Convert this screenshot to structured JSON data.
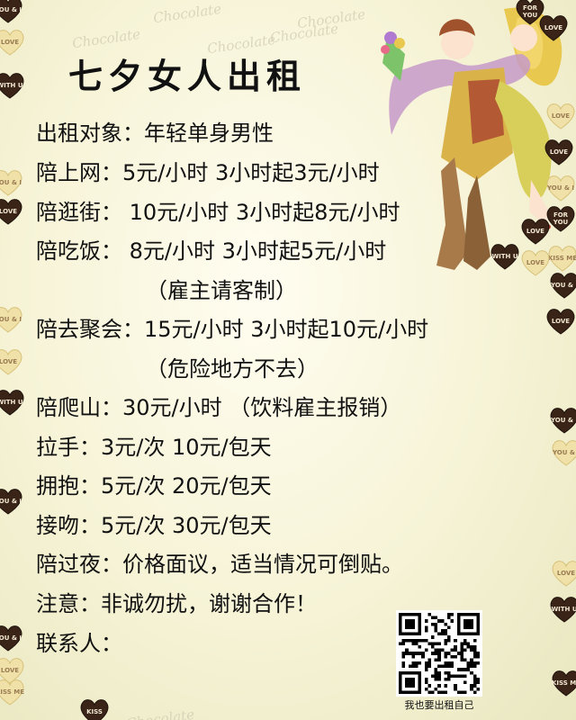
{
  "title": "七夕女人出租",
  "lines": [
    "出租对象：年轻单身男性",
    "陪上网：5元/小时  3小时起3元/小时",
    "陪逛街：  10元/小时  3小时起8元/小时",
    "陪吃饭：  8元/小时  3小时起5元/小时",
    "（雇主请客制）",
    "陪去聚会：15元/小时  3小时起10元/小时",
    "（危险地方不去）",
    "陪爬山：30元/小时   （饮料雇主报销）",
    "拉手：3元/次  10元/包天",
    "拥抱：5元/次  20元/包天",
    "接吻：5元/次  30元/包天",
    "陪过夜：价格面议，适当情况可倒贴。",
    "注意：非诚勿扰，谢谢合作！",
    "联系人："
  ],
  "qr_caption": "我也要出租自己",
  "background_words": [
    "Chocolate",
    "Chocolate",
    "Chocolate",
    "Chocolate",
    "Chocolate",
    "Chocolate"
  ],
  "hearts": [
    {
      "text": "YOU & I",
      "tone": "dark"
    },
    {
      "text": "LOVE",
      "tone": "light"
    },
    {
      "text": "WITH U",
      "tone": "dark"
    },
    {
      "text": "YOU & I",
      "tone": "light"
    },
    {
      "text": "LOVE",
      "tone": "dark"
    },
    {
      "text": "YOU & I",
      "tone": "light"
    },
    {
      "text": "FOR YOU",
      "tone": "dark"
    },
    {
      "text": "LOVE",
      "tone": "dark"
    },
    {
      "text": "LOVE",
      "tone": "light"
    },
    {
      "text": "LOVE",
      "tone": "dark"
    },
    {
      "text": "YOU & I",
      "tone": "light"
    },
    {
      "text": "FOR YOU",
      "tone": "dark"
    },
    {
      "text": "LOVE",
      "tone": "dark"
    },
    {
      "text": "WITH U",
      "tone": "dark"
    },
    {
      "text": "KISS ME",
      "tone": "light"
    },
    {
      "text": "LOVE",
      "tone": "light"
    },
    {
      "text": "YOU & I",
      "tone": "dark"
    },
    {
      "text": "LOVE",
      "tone": "light"
    },
    {
      "text": "WITH U",
      "tone": "dark"
    },
    {
      "text": "YOU & I",
      "tone": "dark"
    },
    {
      "text": "YOU & I",
      "tone": "dark"
    },
    {
      "text": "LOVE",
      "tone": "light"
    },
    {
      "text": "KISS ME",
      "tone": "light"
    },
    {
      "text": "KISS",
      "tone": "dark"
    },
    {
      "text": "LOVE",
      "tone": "dark"
    },
    {
      "text": "YOU & I",
      "tone": "dark"
    },
    {
      "text": "YOU & I",
      "tone": "light"
    },
    {
      "text": "LOVE",
      "tone": "light"
    },
    {
      "text": "WITH U",
      "tone": "dark"
    },
    {
      "text": "KISS ME",
      "tone": "dark"
    }
  ],
  "colors": {
    "dark_heart": "#3a2418",
    "light_heart": "#efe1a8",
    "ink": "#141414"
  }
}
